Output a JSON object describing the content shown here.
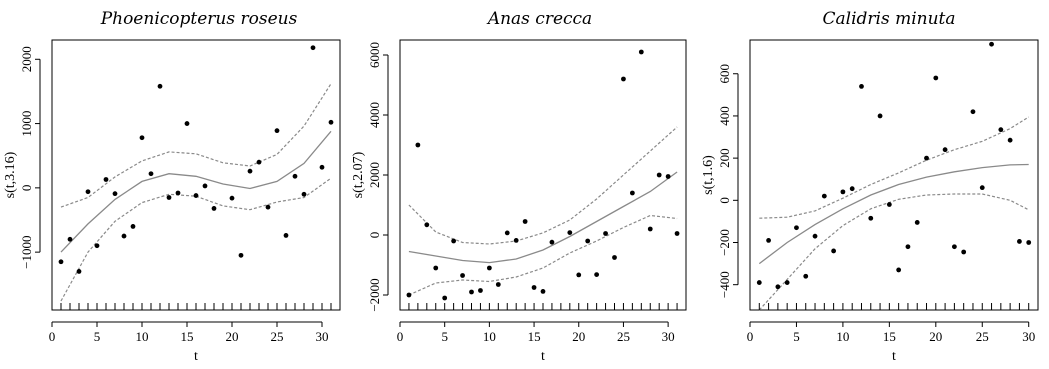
{
  "chart_data": [
    {
      "type": "scatter",
      "title": "Phoenicopterus roseus",
      "xlabel": "t",
      "ylabel": "s(t,3.16)",
      "xlim": [
        0,
        32
      ],
      "ylim": [
        -1900,
        2300
      ],
      "x_ticks": [
        0,
        5,
        10,
        15,
        20,
        25,
        30
      ],
      "y_ticks": [
        -1000,
        0,
        1000,
        2000
      ],
      "rug": [
        1,
        2,
        3,
        4,
        5,
        6,
        7,
        8,
        9,
        10,
        11,
        12,
        13,
        14,
        15,
        16,
        17,
        18,
        19,
        20,
        21,
        22,
        23,
        24,
        25,
        26,
        27,
        28,
        29,
        30,
        31
      ],
      "points": [
        [
          1,
          -1150
        ],
        [
          2,
          -800
        ],
        [
          3,
          -1300
        ],
        [
          4,
          -60
        ],
        [
          5,
          -900
        ],
        [
          6,
          130
        ],
        [
          7,
          -90
        ],
        [
          8,
          -750
        ],
        [
          9,
          -600
        ],
        [
          10,
          780
        ],
        [
          11,
          220
        ],
        [
          12,
          1580
        ],
        [
          13,
          -150
        ],
        [
          14,
          -80
        ],
        [
          15,
          1000
        ],
        [
          16,
          -120
        ],
        [
          17,
          30
        ],
        [
          18,
          -320
        ],
        [
          20,
          -160
        ],
        [
          21,
          -1050
        ],
        [
          22,
          260
        ],
        [
          23,
          400
        ],
        [
          24,
          -300
        ],
        [
          25,
          890
        ],
        [
          26,
          -740
        ],
        [
          27,
          180
        ],
        [
          28,
          -100
        ],
        [
          29,
          2180
        ],
        [
          30,
          320
        ],
        [
          31,
          1020
        ]
      ],
      "fit": [
        [
          1,
          -1000
        ],
        [
          4,
          -560
        ],
        [
          7,
          -180
        ],
        [
          10,
          100
        ],
        [
          13,
          220
        ],
        [
          16,
          180
        ],
        [
          19,
          60
        ],
        [
          22,
          -10
        ],
        [
          25,
          100
        ],
        [
          28,
          380
        ],
        [
          31,
          880
        ]
      ],
      "upper": [
        [
          1,
          -300
        ],
        [
          4,
          -150
        ],
        [
          7,
          170
        ],
        [
          10,
          420
        ],
        [
          13,
          560
        ],
        [
          16,
          530
        ],
        [
          19,
          390
        ],
        [
          22,
          340
        ],
        [
          25,
          520
        ],
        [
          28,
          960
        ],
        [
          31,
          1620
        ]
      ],
      "lower": [
        [
          1,
          -1760
        ],
        [
          4,
          -1000
        ],
        [
          7,
          -520
        ],
        [
          10,
          -230
        ],
        [
          13,
          -100
        ],
        [
          16,
          -130
        ],
        [
          19,
          -280
        ],
        [
          22,
          -340
        ],
        [
          25,
          -220
        ],
        [
          28,
          -150
        ],
        [
          31,
          150
        ]
      ]
    },
    {
      "type": "scatter",
      "title": "Anas crecca",
      "xlabel": "t",
      "ylabel": "s(t,2.07)",
      "xlim": [
        0,
        32
      ],
      "ylim": [
        -2500,
        6500
      ],
      "x_ticks": [
        0,
        5,
        10,
        15,
        20,
        25,
        30
      ],
      "y_ticks": [
        -2000,
        0,
        2000,
        4000,
        6000
      ],
      "rug": [
        1,
        2,
        3,
        4,
        5,
        6,
        7,
        8,
        9,
        10,
        11,
        12,
        13,
        14,
        15,
        16,
        17,
        18,
        19,
        20,
        21,
        22,
        23,
        24,
        25,
        26,
        27,
        28,
        29,
        30,
        31
      ],
      "points": [
        [
          1,
          -2000
        ],
        [
          2,
          3000
        ],
        [
          3,
          340
        ],
        [
          4,
          -1100
        ],
        [
          5,
          -2100
        ],
        [
          6,
          -200
        ],
        [
          7,
          -1350
        ],
        [
          8,
          -1900
        ],
        [
          9,
          -1850
        ],
        [
          10,
          -1100
        ],
        [
          11,
          -1650
        ],
        [
          12,
          70
        ],
        [
          13,
          -180
        ],
        [
          14,
          450
        ],
        [
          15,
          -1750
        ],
        [
          16,
          -1880
        ],
        [
          17,
          -240
        ],
        [
          19,
          80
        ],
        [
          20,
          -1330
        ],
        [
          21,
          -200
        ],
        [
          22,
          -1320
        ],
        [
          23,
          50
        ],
        [
          24,
          -750
        ],
        [
          25,
          5200
        ],
        [
          26,
          1400
        ],
        [
          27,
          6100
        ],
        [
          28,
          200
        ],
        [
          29,
          2000
        ],
        [
          30,
          1950
        ],
        [
          31,
          50
        ]
      ],
      "fit": [
        [
          1,
          -550
        ],
        [
          4,
          -700
        ],
        [
          7,
          -850
        ],
        [
          10,
          -920
        ],
        [
          13,
          -800
        ],
        [
          16,
          -500
        ],
        [
          19,
          -50
        ],
        [
          22,
          450
        ],
        [
          25,
          950
        ],
        [
          28,
          1450
        ],
        [
          31,
          2100
        ]
      ],
      "upper": [
        [
          1,
          1000
        ],
        [
          4,
          100
        ],
        [
          7,
          -250
        ],
        [
          10,
          -300
        ],
        [
          13,
          -200
        ],
        [
          16,
          70
        ],
        [
          19,
          500
        ],
        [
          22,
          1200
        ],
        [
          25,
          2000
        ],
        [
          28,
          2800
        ],
        [
          31,
          3600
        ]
      ],
      "lower": [
        [
          1,
          -2000
        ],
        [
          4,
          -1600
        ],
        [
          7,
          -1500
        ],
        [
          10,
          -1550
        ],
        [
          13,
          -1400
        ],
        [
          16,
          -1100
        ],
        [
          19,
          -600
        ],
        [
          22,
          -200
        ],
        [
          25,
          250
        ],
        [
          28,
          650
        ],
        [
          31,
          550
        ]
      ]
    },
    {
      "type": "scatter",
      "title": "Calidris minuta",
      "xlabel": "t",
      "ylabel": "s(t,1.6)",
      "xlim": [
        0,
        31
      ],
      "ylim": [
        -520,
        760
      ],
      "x_ticks": [
        0,
        5,
        10,
        15,
        20,
        25,
        30
      ],
      "y_ticks": [
        -400,
        -200,
        0,
        200,
        400,
        600
      ],
      "rug": [
        1,
        2,
        3,
        4,
        5,
        6,
        7,
        8,
        9,
        10,
        11,
        12,
        13,
        14,
        15,
        16,
        17,
        18,
        19,
        20,
        21,
        22,
        23,
        24,
        25,
        26,
        27,
        28,
        29,
        30
      ],
      "points": [
        [
          1,
          -390
        ],
        [
          2,
          -190
        ],
        [
          3,
          -410
        ],
        [
          4,
          -390
        ],
        [
          5,
          -130
        ],
        [
          6,
          -360
        ],
        [
          7,
          -170
        ],
        [
          8,
          20
        ],
        [
          9,
          -240
        ],
        [
          10,
          40
        ],
        [
          11,
          55
        ],
        [
          12,
          540
        ],
        [
          13,
          -85
        ],
        [
          14,
          400
        ],
        [
          15,
          -20
        ],
        [
          16,
          -330
        ],
        [
          17,
          -220
        ],
        [
          18,
          -105
        ],
        [
          19,
          200
        ],
        [
          20,
          580
        ],
        [
          21,
          240
        ],
        [
          22,
          -220
        ],
        [
          23,
          -245
        ],
        [
          24,
          420
        ],
        [
          25,
          60
        ],
        [
          26,
          740
        ],
        [
          27,
          335
        ],
        [
          28,
          285
        ],
        [
          29,
          -195
        ],
        [
          30,
          -200
        ]
      ],
      "fit": [
        [
          1,
          -300
        ],
        [
          4,
          -200
        ],
        [
          7,
          -115
        ],
        [
          10,
          -40
        ],
        [
          13,
          25
        ],
        [
          16,
          75
        ],
        [
          19,
          110
        ],
        [
          22,
          135
        ],
        [
          25,
          155
        ],
        [
          28,
          168
        ],
        [
          30,
          170
        ]
      ],
      "upper": [
        [
          1,
          -85
        ],
        [
          4,
          -80
        ],
        [
          7,
          -50
        ],
        [
          10,
          10
        ],
        [
          13,
          75
        ],
        [
          16,
          130
        ],
        [
          19,
          190
        ],
        [
          22,
          240
        ],
        [
          25,
          280
        ],
        [
          28,
          340
        ],
        [
          30,
          395
        ]
      ],
      "lower": [
        [
          1,
          -520
        ],
        [
          4,
          -375
        ],
        [
          7,
          -230
        ],
        [
          10,
          -120
        ],
        [
          13,
          -40
        ],
        [
          16,
          5
        ],
        [
          19,
          25
        ],
        [
          22,
          30
        ],
        [
          25,
          30
        ],
        [
          28,
          0
        ],
        [
          30,
          -45
        ]
      ]
    }
  ]
}
